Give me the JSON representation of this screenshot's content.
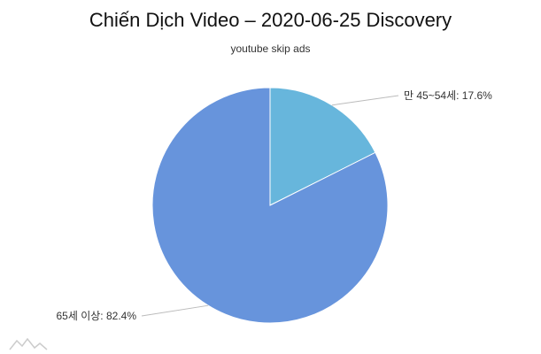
{
  "chart_data": {
    "type": "pie",
    "title": "Chiến Dịch Video – 2020-06-25 Discovery",
    "subtitle": "youtube skip ads",
    "slices": [
      {
        "label": "만 45~54세",
        "value": 17.6,
        "display": "만 45~54세: 17.6%",
        "color": "#67b6dc"
      },
      {
        "label": "65세 이상",
        "value": 82.4,
        "display": "65세 이상: 82.4%",
        "color": "#6794dc"
      }
    ],
    "legend": "none",
    "watermark_icon": "mountain-logo-icon"
  }
}
